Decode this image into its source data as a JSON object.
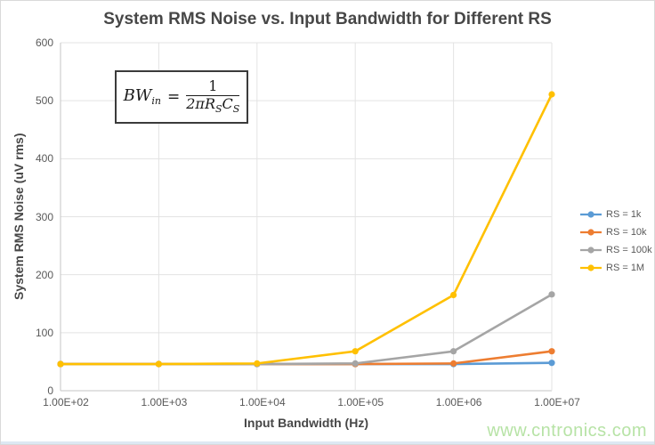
{
  "page": {
    "watermark": "www.cntronics.com"
  },
  "chart_data": {
    "type": "line",
    "title": "System RMS Noise vs. Input Bandwidth for Different RS",
    "xlabel": "Input Bandwidth (Hz)",
    "ylabel": "System RMS Noise (uV rms)",
    "x_scale": "logarithmic-categories",
    "categories": [
      "1.00E+02",
      "1.00E+03",
      "1.00E+04",
      "1.00E+05",
      "1.00E+06",
      "1.00E+07"
    ],
    "ylim": [
      0,
      600
    ],
    "y_tick_step": 100,
    "grid": true,
    "legend_position": "right",
    "series": [
      {
        "name": "RS = 1k",
        "color": "#5B9BD5",
        "values": [
          46,
          46,
          46,
          46,
          46,
          48
        ]
      },
      {
        "name": "RS = 10k",
        "color": "#ED7D31",
        "values": [
          46,
          46,
          46,
          46,
          47,
          68
        ]
      },
      {
        "name": "RS = 100k",
        "color": "#A5A5A5",
        "values": [
          46,
          46,
          46,
          47,
          68,
          166
        ]
      },
      {
        "name": "RS = 1M",
        "color": "#FFC000",
        "values": [
          46,
          46,
          47,
          68,
          165,
          511
        ]
      }
    ],
    "annotation_formula": {
      "lhs": "BW",
      "lhs_sub": "in",
      "eq": "=",
      "numerator": "1",
      "den_coef": "2π",
      "den_r": "R",
      "den_r_sub": "S",
      "den_c": "C",
      "den_c_sub": "S"
    }
  },
  "colors": {
    "gridline": "#e3e3e3",
    "axis_line": "#c6c6c6",
    "tick_text": "#595959",
    "title_text": "#474747",
    "watermark_text": "#b7e3a6"
  }
}
